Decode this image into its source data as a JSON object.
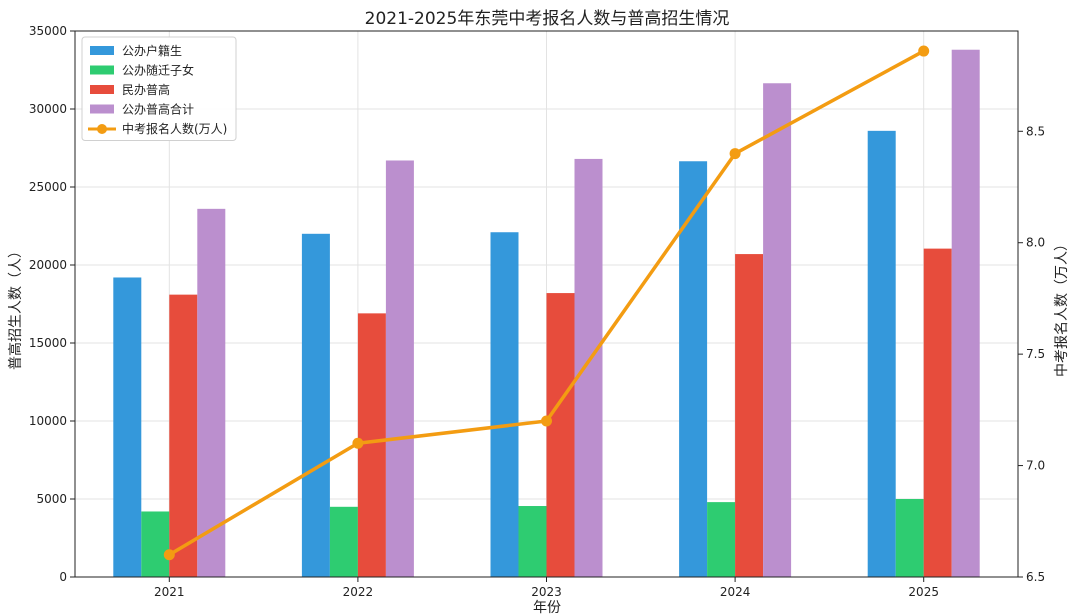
{
  "chart_data": {
    "type": "bar+line",
    "title": "2021-2025年东莞中考报名人数与普高招生情况",
    "xlabel": "年份",
    "ylabel": "普高招生人数（人）",
    "y2label": "中考报名人数（万人）",
    "categories": [
      "2021",
      "2022",
      "2023",
      "2024",
      "2025"
    ],
    "ylim": [
      0,
      35000
    ],
    "yticks": [
      0,
      5000,
      10000,
      15000,
      20000,
      25000,
      30000,
      35000
    ],
    "y2lim": [
      6.5,
      8.95
    ],
    "y2ticks": [
      6.5,
      7.0,
      7.5,
      8.0,
      8.5
    ],
    "y2ticklabels": [
      "6.5",
      "7.0",
      "7.5",
      "8.0",
      "8.5"
    ],
    "grid": true,
    "legend_position": "top-left",
    "series": [
      {
        "name": "公办户籍生",
        "kind": "bar",
        "color": "#3498db",
        "values": [
          19200,
          22000,
          22100,
          26650,
          28600
        ]
      },
      {
        "name": "公办随迁子女",
        "kind": "bar",
        "color": "#2ecc71",
        "values": [
          4200,
          4500,
          4550,
          4800,
          5000
        ]
      },
      {
        "name": "民办普高",
        "kind": "bar",
        "color": "#e74c3c",
        "values": [
          18100,
          16900,
          18200,
          20700,
          21050
        ]
      },
      {
        "name": "公办普高合计",
        "kind": "bar",
        "color": "#bb8fce",
        "values": [
          23600,
          26700,
          26800,
          31650,
          33800
        ]
      },
      {
        "name": "中考报名人数(万人)",
        "kind": "line",
        "axis": "right",
        "color": "#f39c12",
        "values": [
          6.6,
          7.1,
          7.2,
          8.4,
          8.86
        ]
      }
    ]
  }
}
